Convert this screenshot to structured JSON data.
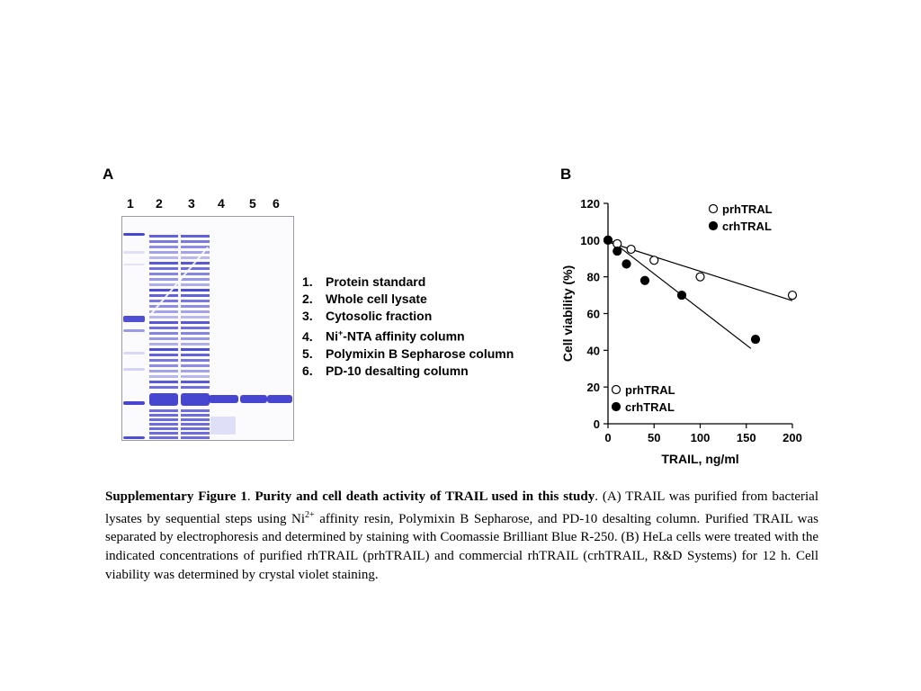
{
  "panel_a": {
    "label": "A",
    "lane_numbers": [
      "1",
      "2",
      "3",
      "4",
      "5",
      "6"
    ],
    "legend": [
      {
        "num": "1.",
        "text": "Protein standard"
      },
      {
        "num": "2.",
        "text": "Whole cell lysate"
      },
      {
        "num": "3.",
        "text": "Cytosolic fraction"
      },
      {
        "num": "4.",
        "text_pre": "Ni",
        "text_sup": "+",
        "text_post": "-NTA  affinity column"
      },
      {
        "num": "5.",
        "text": "Polymixin B Sepharose column"
      },
      {
        "num": "6.",
        "text": "PD-10 desalting column"
      }
    ]
  },
  "panel_b": {
    "label": "B"
  },
  "chart_data": {
    "type": "scatter",
    "xlabel": "TRAIL, ng/ml",
    "ylabel": "Cell viability (%)",
    "xlim": [
      0,
      200
    ],
    "ylim": [
      0,
      120
    ],
    "xticks": [
      "0",
      "50",
      "100",
      "150",
      "200"
    ],
    "yticks": [
      "0",
      "20",
      "40",
      "60",
      "80",
      "100",
      "120"
    ],
    "legend_placement": "top-right and bottom-left",
    "series": [
      {
        "name": "prhTRAL",
        "marker": "open-circle",
        "x": [
          0,
          10,
          25,
          50,
          100,
          200
        ],
        "y": [
          100,
          98,
          95,
          89,
          80,
          70
        ],
        "fit": {
          "x": [
            0,
            200
          ],
          "y": [
            99,
            67
          ]
        }
      },
      {
        "name": "crhTRAL",
        "marker": "filled-circle",
        "x": [
          0,
          10,
          20,
          40,
          80,
          160
        ],
        "y": [
          100,
          94,
          87,
          78,
          70,
          46
        ],
        "fit": {
          "x": [
            0,
            155
          ],
          "y": [
            101,
            41
          ]
        }
      }
    ],
    "legends": [
      {
        "entries": [
          "prhTRAL",
          "crhTRAL"
        ]
      },
      {
        "entries": [
          "prhTRAL",
          "crhTRAL"
        ]
      }
    ]
  },
  "caption": {
    "label": "Supplementary Figure 1",
    "sep": ".  ",
    "title": "Purity and cell death activity of TRAIL used in this study",
    "text_1": ". (A) TRAIL was purified from bacterial lysates by sequential steps using Ni",
    "sup": "2+",
    "text_2": " affinity resin, Polymixin B Sepharose, and PD-10 desalting column. Purified TRAIL was separated by electrophoresis and determined by staining with Coomassie Brilliant Blue R-250.  (B) HeLa cells were treated with the indicated concentrations of purified rhTRAIL (prhTRAIL) and commercial rhTRAIL (crhTRAIL, R&D Systems) for 12 h. Cell viability was determined by crystal violet staining."
  },
  "colors": {
    "gel_band": "#3c3ccf",
    "gel_band_light": "#8a8ae6",
    "gel_background": "#fbfbfe",
    "ink": "#000000"
  }
}
